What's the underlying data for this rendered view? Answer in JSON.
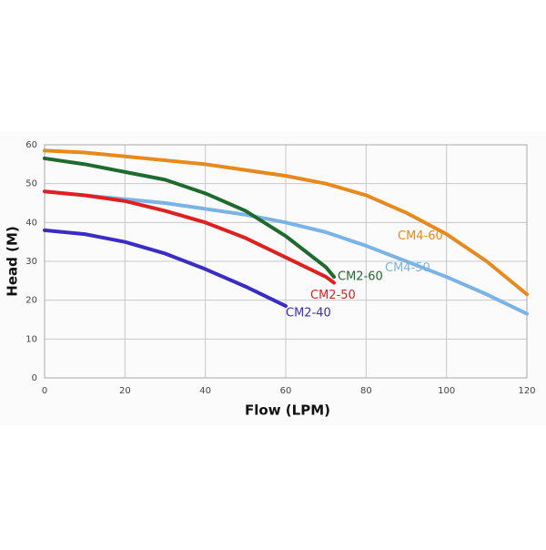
{
  "chart_data": {
    "type": "line",
    "xlabel": "Flow (LPM)",
    "ylabel": "Head (M)",
    "xlim": [
      0,
      120
    ],
    "xticks": [
      0,
      20,
      40,
      60,
      80,
      100,
      120
    ],
    "ylim": [
      0,
      60
    ],
    "yticks": [
      0,
      10,
      20,
      30,
      40,
      50,
      60
    ],
    "grid": true,
    "series": [
      {
        "name": "CM4-60",
        "color": "#e8891c",
        "x": [
          0,
          10,
          20,
          30,
          40,
          50,
          60,
          70,
          80,
          90,
          100,
          110,
          120
        ],
        "values": [
          58.5,
          58,
          57,
          56,
          55,
          53.5,
          52,
          50,
          47,
          42.5,
          37,
          30,
          21.5
        ]
      },
      {
        "name": "CM4-50",
        "color": "#7ab3e6",
        "x": [
          0,
          10,
          20,
          30,
          40,
          50,
          60,
          70,
          80,
          90,
          100,
          110,
          120
        ],
        "values": [
          48,
          47,
          46,
          45,
          43.5,
          42,
          40,
          37.5,
          34,
          30,
          26,
          21.5,
          16.5
        ]
      },
      {
        "name": "CM2-60",
        "color": "#1e6b2e",
        "x": [
          0,
          10,
          20,
          30,
          40,
          50,
          60,
          70,
          72
        ],
        "values": [
          56.5,
          55,
          53,
          51,
          47.5,
          43,
          36.5,
          28.5,
          26
        ]
      },
      {
        "name": "CM2-50",
        "color": "#e02020",
        "x": [
          0,
          10,
          20,
          30,
          40,
          50,
          60,
          70,
          72
        ],
        "values": [
          48,
          47,
          45.5,
          43,
          40,
          36,
          31,
          26,
          24.5
        ]
      },
      {
        "name": "CM2-40",
        "color": "#3a2cc4",
        "x": [
          0,
          10,
          20,
          30,
          40,
          50,
          60
        ],
        "values": [
          38,
          37,
          35,
          32,
          28,
          23.5,
          18.5
        ]
      }
    ]
  }
}
